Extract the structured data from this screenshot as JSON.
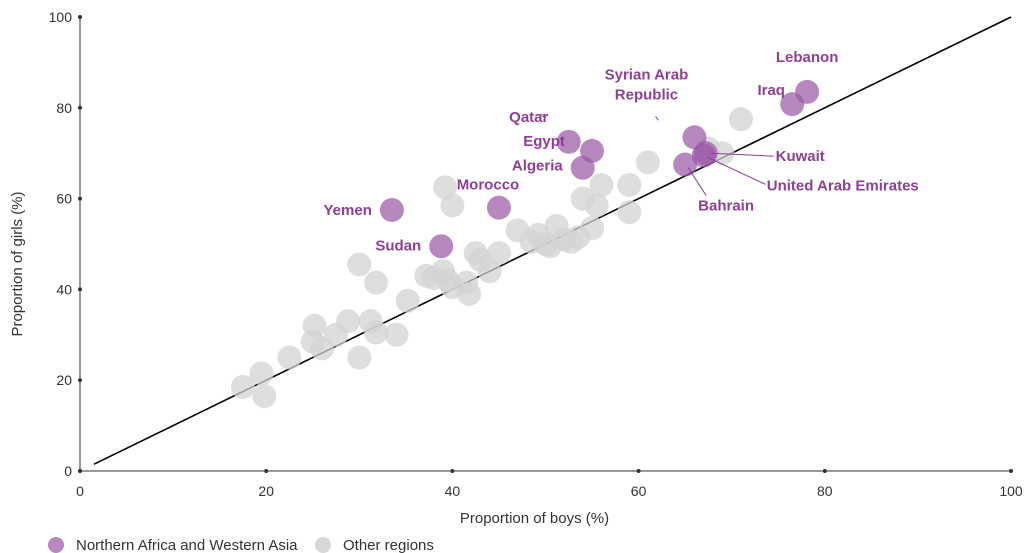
{
  "chart_data": {
    "type": "scatter",
    "xlabel": "Proportion of boys (%)",
    "ylabel": "Proportion of girls (%)",
    "xlim": [
      0,
      100
    ],
    "ylim": [
      0,
      100
    ],
    "x_ticks": [
      "0",
      "20",
      "40",
      "60",
      "80",
      "100"
    ],
    "y_ticks": [
      "0",
      "20",
      "40",
      "60",
      "80",
      "100"
    ],
    "reference_line": "y = x",
    "grid": false,
    "legend_position": "bottom-left",
    "colors": {
      "highlight": "#9b59a8",
      "highlight_label": "#8e3f96",
      "other": "#d3d3d3",
      "line": "#000000"
    },
    "series": [
      {
        "name": "Northern Africa and Western Asia",
        "points": [
          {
            "label": "Lebanon",
            "x": 78.1,
            "y": 83.5
          },
          {
            "label": "Iraq",
            "x": 76.5,
            "y": 80.8
          },
          {
            "label": "Syrian Arab Republic",
            "x": 66.0,
            "y": 73.5
          },
          {
            "label": "Qatar",
            "x": 52.5,
            "y": 72.5
          },
          {
            "label": "Egypt",
            "x": 55.0,
            "y": 70.5
          },
          {
            "label": "Algeria",
            "x": 54.0,
            "y": 66.8
          },
          {
            "label": "Kuwait",
            "x": 67.2,
            "y": 70.0
          },
          {
            "label": "United Arab Emirates",
            "x": 67.0,
            "y": 69.5
          },
          {
            "label": "Bahrain",
            "x": 65.0,
            "y": 67.5
          },
          {
            "label": "Morocco",
            "x": 45.0,
            "y": 58.0
          },
          {
            "label": "Yemen",
            "x": 33.5,
            "y": 57.5
          },
          {
            "label": "Sudan",
            "x": 38.8,
            "y": 49.5
          }
        ]
      },
      {
        "name": "Other regions",
        "points": [
          {
            "x": 17.5,
            "y": 18.5
          },
          {
            "x": 19.8,
            "y": 16.5
          },
          {
            "x": 19.5,
            "y": 21.5
          },
          {
            "x": 22.5,
            "y": 25.0
          },
          {
            "x": 25.0,
            "y": 28.5
          },
          {
            "x": 25.2,
            "y": 32.0
          },
          {
            "x": 26.0,
            "y": 27.0
          },
          {
            "x": 27.5,
            "y": 30.0
          },
          {
            "x": 28.8,
            "y": 33.0
          },
          {
            "x": 30.0,
            "y": 25.0
          },
          {
            "x": 31.2,
            "y": 33.0
          },
          {
            "x": 31.8,
            "y": 30.5
          },
          {
            "x": 30.0,
            "y": 45.5
          },
          {
            "x": 31.8,
            "y": 41.5
          },
          {
            "x": 34.0,
            "y": 30.0
          },
          {
            "x": 35.2,
            "y": 37.5
          },
          {
            "x": 37.2,
            "y": 43.0
          },
          {
            "x": 38.0,
            "y": 42.5
          },
          {
            "x": 39.0,
            "y": 44.0
          },
          {
            "x": 39.5,
            "y": 42.0
          },
          {
            "x": 40.0,
            "y": 40.5
          },
          {
            "x": 41.5,
            "y": 41.5
          },
          {
            "x": 41.8,
            "y": 39.0
          },
          {
            "x": 42.5,
            "y": 48.0
          },
          {
            "x": 43.0,
            "y": 46.5
          },
          {
            "x": 44.0,
            "y": 44.0
          },
          {
            "x": 45.0,
            "y": 48.0
          },
          {
            "x": 39.2,
            "y": 62.5
          },
          {
            "x": 40.0,
            "y": 58.5
          },
          {
            "x": 47.0,
            "y": 53.0
          },
          {
            "x": 48.5,
            "y": 50.5
          },
          {
            "x": 49.2,
            "y": 52.0
          },
          {
            "x": 50.0,
            "y": 50.0
          },
          {
            "x": 50.5,
            "y": 49.5
          },
          {
            "x": 51.2,
            "y": 54.0
          },
          {
            "x": 52.0,
            "y": 51.0
          },
          {
            "x": 52.8,
            "y": 50.5
          },
          {
            "x": 53.5,
            "y": 51.5
          },
          {
            "x": 54.0,
            "y": 60.0
          },
          {
            "x": 55.0,
            "y": 53.5
          },
          {
            "x": 55.5,
            "y": 58.5
          },
          {
            "x": 56.0,
            "y": 63.0
          },
          {
            "x": 59.0,
            "y": 57.0
          },
          {
            "x": 59.0,
            "y": 63.0
          },
          {
            "x": 61.0,
            "y": 68.0
          },
          {
            "x": 67.5,
            "y": 71.0
          },
          {
            "x": 69.0,
            "y": 70.0
          },
          {
            "x": 71.0,
            "y": 77.5
          }
        ]
      }
    ]
  }
}
